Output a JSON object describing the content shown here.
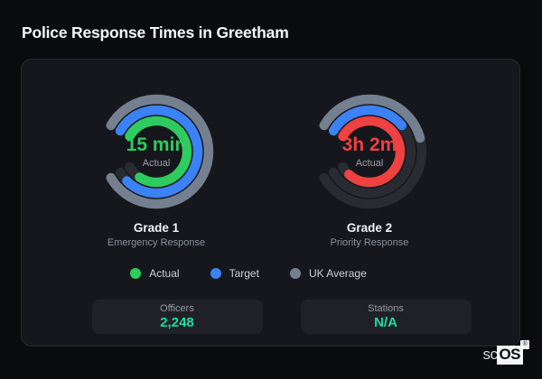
{
  "header": {
    "title": "Police Response Times in Greetham"
  },
  "chart_data": {
    "type": "gauge",
    "start_angle_degrees": -60,
    "arc_span_degrees": 300,
    "track_color": "#282b31",
    "gauges": [
      {
        "name": "Grade 1",
        "subtitle": "Emergency Response",
        "value_label": "15 min",
        "value_caption": "Actual",
        "value_color": "#2ecc5e",
        "rings": [
          {
            "series": "UK Average",
            "color": "#74808f",
            "fraction": 1.0
          },
          {
            "series": "Target",
            "color": "#3b82f6",
            "fraction": 0.95
          },
          {
            "series": "Actual",
            "color": "#2ecc5e",
            "fraction": 0.91
          }
        ]
      },
      {
        "name": "Grade 2",
        "subtitle": "Priority Response",
        "value_label": "3h 2m",
        "value_caption": "Actual",
        "value_color": "#ee4141",
        "rings": [
          {
            "series": "UK Average",
            "color": "#74808f",
            "fraction": 0.45
          },
          {
            "series": "Target",
            "color": "#3b82f6",
            "fraction": 0.37
          },
          {
            "series": "Actual",
            "color": "#ee4141",
            "fraction": 0.94
          }
        ]
      }
    ]
  },
  "legend": {
    "items": [
      {
        "label": "Actual",
        "color": "#2ecc5e"
      },
      {
        "label": "Target",
        "color": "#3b82f6"
      },
      {
        "label": "UK Average",
        "color": "#74808f"
      }
    ]
  },
  "stats": [
    {
      "label": "Officers",
      "value": "2,248",
      "value_color": "#1ddca1"
    },
    {
      "label": "Stations",
      "value": "N/A",
      "value_color": "#1ddca1"
    }
  ],
  "logo": {
    "prefix": "sc",
    "suffix": "OS",
    "registered": "®"
  }
}
